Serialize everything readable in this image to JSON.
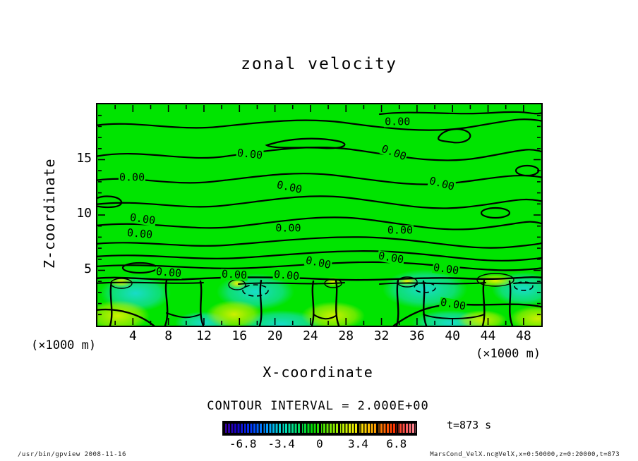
{
  "title": "zonal velocity",
  "axes": {
    "x": {
      "label": "X-coordinate",
      "unit": "(×1000 m)",
      "ticks": [
        4,
        8,
        12,
        16,
        20,
        24,
        28,
        32,
        36,
        40,
        44,
        48
      ],
      "range": [
        0,
        50
      ]
    },
    "z": {
      "label": "Z-coordinate",
      "unit": "(×1000 m)",
      "ticks": [
        5,
        10,
        15
      ],
      "range": [
        0,
        20
      ]
    }
  },
  "contour": {
    "label_text": "0.00"
  },
  "colorbar": {
    "title": "CONTOUR INTERVAL = 2.000E+00",
    "ticks": [
      -6.8,
      -3.4,
      0,
      3.4,
      6.8
    ],
    "value_range": [
      -8.5,
      8.5
    ]
  },
  "annotations": {
    "time": "t=873 s"
  },
  "footer": {
    "left": "/usr/bin/gpview  2008-11-16",
    "right": "MarsCond_VelX.nc@VelX,x=0:50000,z=0:20000,t=873"
  },
  "colors": {
    "field_green": "#00e400",
    "patch_cyan": "#18dcc8",
    "patch_yellow_green": "#c8f000",
    "contour_line": "#000000"
  },
  "chart_data": {
    "type": "heatmap",
    "subtype": "filled-contour",
    "title": "zonal velocity",
    "xlabel": "X-coordinate",
    "ylabel": "Z-coordinate",
    "x_unit": "(×1000 m)",
    "y_unit": "(×1000 m)",
    "xlim": [
      0,
      50
    ],
    "ylim": [
      0,
      20
    ],
    "x_ticks": [
      4,
      8,
      12,
      16,
      20,
      24,
      28,
      32,
      36,
      40,
      44,
      48
    ],
    "y_ticks": [
      5,
      10,
      15
    ],
    "contour_interval": 2.0,
    "labeled_level": 0.0,
    "colorbar_ticks": [
      -6.8,
      -3.4,
      0,
      3.4,
      6.8
    ],
    "time_annotation": "t=873 s",
    "grid": false,
    "legend_position": "none",
    "description": "Zonal velocity field: nearly zero (uniform green, many 0.00 contours) above z≈4.5; below z≈4.5 a row of alternating weak positive (yellow-green) and weak negative (cyan, dashed contours) cells near the surface, |u| < 2.",
    "contour_labels": [
      {
        "x": 33.8,
        "z": 18.4,
        "rot": 0
      },
      {
        "x": 17.2,
        "z": 15.5,
        "rot": 6
      },
      {
        "x": 33.4,
        "z": 15.6,
        "rot": 20
      },
      {
        "x": 3.9,
        "z": 13.4,
        "rot": 0
      },
      {
        "x": 21.6,
        "z": 12.5,
        "rot": 12
      },
      {
        "x": 38.8,
        "z": 12.8,
        "rot": 15
      },
      {
        "x": 5.1,
        "z": 9.6,
        "rot": 8
      },
      {
        "x": 4.8,
        "z": 8.3,
        "rot": 5
      },
      {
        "x": 21.5,
        "z": 8.8,
        "rot": 0
      },
      {
        "x": 34.1,
        "z": 8.6,
        "rot": 0
      },
      {
        "x": 24.9,
        "z": 5.7,
        "rot": 12
      },
      {
        "x": 33.1,
        "z": 6.1,
        "rot": 10
      },
      {
        "x": 39.3,
        "z": 5.1,
        "rot": 8
      },
      {
        "x": 8.0,
        "z": 4.8,
        "rot": 5
      },
      {
        "x": 15.4,
        "z": 4.6,
        "rot": 3
      },
      {
        "x": 21.3,
        "z": 4.5,
        "rot": 5
      },
      {
        "x": 40.1,
        "z": 1.9,
        "rot": 10
      }
    ]
  }
}
